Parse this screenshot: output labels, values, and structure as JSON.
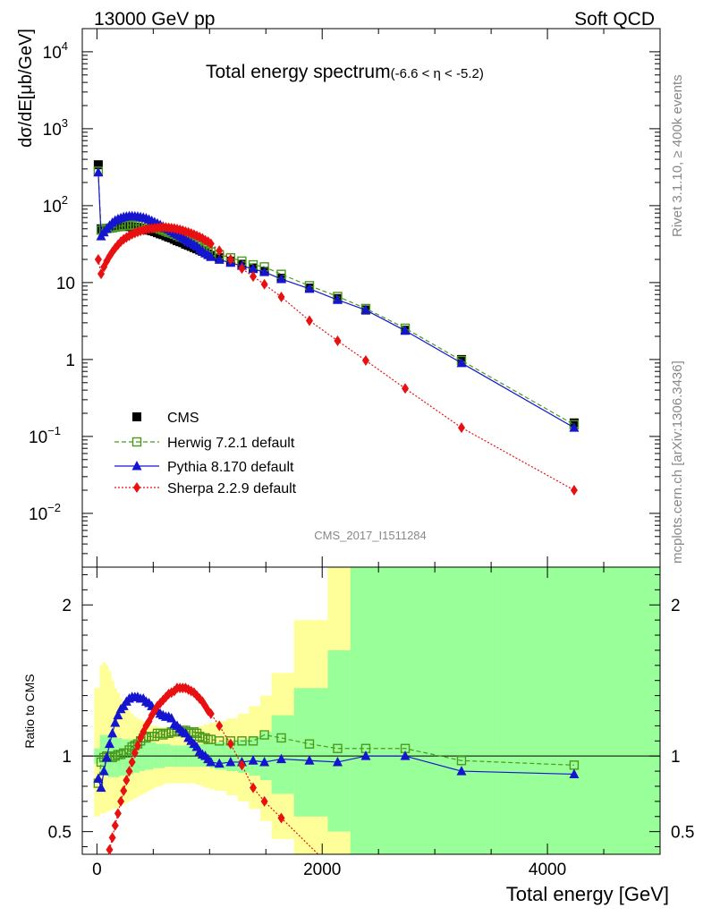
{
  "header": {
    "left": "13000 GeV pp",
    "right": "Soft QCD"
  },
  "side": {
    "rivet": "Rivet 3.1.10, ≥ 400k events",
    "mcplots": "mcplots.cern.ch [arXiv:1306.3436]"
  },
  "chart_data": {
    "type": "line",
    "title": "Total energy spectrum",
    "title_sub": "(-6.6 < η < -5.2)",
    "analysis": "CMS_2017_I1511284",
    "ylabel": "dσ/dE[μb/GeV]",
    "xlabel": "Total energy [GeV]",
    "ratio_ylabel": "Ratio to CMS",
    "xlim": [
      -130,
      5000
    ],
    "ylim_log": [
      0.002,
      20000
    ],
    "ratio_ylim": [
      0.35,
      2.25
    ],
    "x_ticks": [
      0,
      2000,
      4000
    ],
    "x_tick_labels": [
      "0",
      "2000",
      "4000"
    ],
    "y_ticks": [
      {
        "v": 10000,
        "b": "10",
        "e": "4"
      },
      {
        "v": 1000,
        "b": "10",
        "e": "3"
      },
      {
        "v": 100,
        "b": "10",
        "e": "2"
      },
      {
        "v": 10,
        "b": "10",
        "e": ""
      },
      {
        "v": 1,
        "b": "1",
        "e": ""
      },
      {
        "v": 0.1,
        "b": "10",
        "e": "−1"
      },
      {
        "v": 0.01,
        "b": "10",
        "e": "−2"
      }
    ],
    "ratio_ticks": [
      {
        "v": 0.5,
        "l": "0.5"
      },
      {
        "v": 1,
        "l": "1"
      },
      {
        "v": 2,
        "l": "2"
      }
    ],
    "legend": [
      "CMS",
      "Herwig 7.2.1 default",
      "Pythia 8.170 default",
      "Sherpa 2.2.9 default"
    ],
    "colors": {
      "cms": "#000000",
      "herwig": "#4a9a1e",
      "pythia": "#1515d0",
      "sherpa": "#e81010",
      "band_green": "#99ff99",
      "band_yellow": "#ffff99"
    },
    "series": [
      {
        "name": "CMS",
        "x": [
          12,
          37,
          62,
          87,
          112,
          137,
          162,
          187,
          212,
          237,
          262,
          287,
          312,
          337,
          362,
          387,
          412,
          437,
          462,
          487,
          512,
          537,
          562,
          587,
          612,
          637,
          662,
          687,
          712,
          737,
          762,
          787,
          812,
          837,
          862,
          887,
          912,
          937,
          962,
          987,
          1012,
          1087,
          1187,
          1287,
          1387,
          1487,
          1637,
          1887,
          2137,
          2387,
          2737,
          3237,
          4237
        ],
        "values": [
          340,
          50,
          50,
          50.5,
          51,
          52,
          52.5,
          53,
          53.5,
          54,
          54,
          53.5,
          53,
          52.5,
          52,
          51,
          50,
          49,
          48,
          47,
          46,
          44.5,
          43,
          42,
          40.5,
          39,
          38,
          36.5,
          35,
          34,
          33,
          31.5,
          30.5,
          29.5,
          28.5,
          27.5,
          26.5,
          25.5,
          24.5,
          23.5,
          22.5,
          21,
          19,
          17.3,
          15.5,
          14,
          11.4,
          8.5,
          6.2,
          4.4,
          2.4,
          1.0,
          0.15
        ]
      },
      {
        "name": "Herwig 7.2.1 default",
        "x": [
          12,
          37,
          62,
          87,
          112,
          137,
          162,
          187,
          212,
          237,
          262,
          287,
          312,
          337,
          362,
          387,
          412,
          437,
          462,
          487,
          512,
          537,
          562,
          587,
          612,
          637,
          662,
          687,
          712,
          737,
          762,
          787,
          812,
          837,
          862,
          887,
          912,
          937,
          962,
          987,
          1012,
          1087,
          1187,
          1287,
          1387,
          1487,
          1637,
          1887,
          2137,
          2387,
          2737,
          3237,
          4237
        ],
        "values": [
          280,
          48,
          49.5,
          50.5,
          51,
          51.5,
          52.5,
          53.5,
          54,
          55,
          55,
          55.5,
          56,
          56,
          56,
          56,
          56,
          55,
          54,
          53,
          52,
          51,
          49.5,
          48,
          46.5,
          45,
          44,
          42.5,
          41,
          39.5,
          38.5,
          37,
          35.5,
          34,
          33,
          31.5,
          30,
          28.5,
          27.5,
          26,
          25,
          23,
          21,
          19,
          17,
          16,
          12.8,
          9.1,
          6.6,
          4.6,
          2.55,
          0.97,
          0.142
        ]
      },
      {
        "name": "Pythia 8.170 default",
        "x": [
          12,
          37,
          62,
          87,
          112,
          137,
          162,
          187,
          212,
          237,
          262,
          287,
          312,
          337,
          362,
          387,
          412,
          437,
          462,
          487,
          512,
          537,
          562,
          587,
          612,
          637,
          662,
          687,
          712,
          737,
          762,
          787,
          812,
          837,
          862,
          887,
          912,
          937,
          962,
          987,
          1012,
          1087,
          1187,
          1287,
          1387,
          1487,
          1637,
          1887,
          2137,
          2387,
          2737,
          3237,
          4237
        ],
        "values": [
          270,
          40,
          45,
          50,
          55,
          60,
          64,
          67,
          69,
          71,
          72,
          73,
          73,
          72.5,
          72,
          71,
          70,
          68.5,
          66,
          63.5,
          61,
          58.5,
          56,
          53.5,
          51,
          49,
          46.5,
          44,
          42,
          40,
          38,
          36,
          34,
          32.5,
          31,
          29.5,
          27,
          25.5,
          24,
          22.8,
          21.5,
          19.8,
          18.1,
          16.5,
          15.0,
          13.7,
          11.1,
          8.3,
          5.95,
          4.4,
          2.37,
          0.9,
          0.13
        ]
      },
      {
        "name": "Sherpa 2.2.9 default",
        "x": [
          12,
          37,
          62,
          87,
          112,
          137,
          162,
          187,
          212,
          237,
          262,
          287,
          312,
          337,
          362,
          387,
          412,
          437,
          462,
          487,
          512,
          537,
          562,
          587,
          612,
          637,
          662,
          687,
          712,
          737,
          762,
          787,
          812,
          837,
          862,
          887,
          912,
          937,
          962,
          987,
          1012,
          1087,
          1187,
          1287,
          1387,
          1487,
          1637,
          1887,
          2137,
          2387,
          2737,
          3237,
          4237
        ],
        "values": [
          20,
          13,
          16,
          19,
          22,
          25,
          28,
          31,
          34,
          36.5,
          38.5,
          40.5,
          42.5,
          44,
          45.5,
          47,
          48,
          49,
          50,
          50.5,
          51,
          51.5,
          52,
          52,
          52,
          51.5,
          51,
          50.5,
          49.5,
          48.5,
          47.5,
          46,
          45,
          43.5,
          42,
          40.5,
          39,
          37.5,
          35.5,
          34,
          32,
          26,
          20,
          15.2,
          12.0,
          9.5,
          6.5,
          3.2,
          1.75,
          0.97,
          0.42,
          0.13,
          0.02
        ]
      }
    ],
    "ratio_series": [
      {
        "name": "Herwig 7.2.1 default",
        "x": [
          12,
          37,
          62,
          87,
          112,
          137,
          162,
          187,
          212,
          237,
          262,
          287,
          312,
          337,
          362,
          387,
          412,
          437,
          462,
          487,
          512,
          537,
          562,
          587,
          612,
          637,
          662,
          687,
          712,
          737,
          762,
          787,
          812,
          837,
          862,
          887,
          912,
          937,
          962,
          987,
          1012,
          1087,
          1187,
          1287,
          1387,
          1487,
          1637,
          1887,
          2137,
          2387,
          2737,
          3237,
          4237
        ],
        "values": [
          0.82,
          0.96,
          0.99,
          1.0,
          1.0,
          0.99,
          1.0,
          1.01,
          1.01,
          1.02,
          1.02,
          1.04,
          1.06,
          1.07,
          1.08,
          1.1,
          1.12,
          1.12,
          1.13,
          1.13,
          1.13,
          1.15,
          1.15,
          1.14,
          1.15,
          1.15,
          1.16,
          1.16,
          1.17,
          1.16,
          1.17,
          1.17,
          1.16,
          1.15,
          1.16,
          1.15,
          1.13,
          1.12,
          1.12,
          1.11,
          1.11,
          1.1,
          1.1,
          1.1,
          1.1,
          1.14,
          1.12,
          1.08,
          1.05,
          1.05,
          1.05,
          0.97,
          0.94
        ]
      },
      {
        "name": "Pythia 8.170 default",
        "x": [
          12,
          37,
          62,
          87,
          112,
          137,
          162,
          187,
          212,
          237,
          262,
          287,
          312,
          337,
          362,
          387,
          412,
          437,
          462,
          487,
          512,
          537,
          562,
          587,
          612,
          637,
          662,
          687,
          712,
          737,
          762,
          787,
          812,
          837,
          862,
          887,
          912,
          937,
          962,
          987,
          1012,
          1087,
          1187,
          1287,
          1387,
          1487,
          1637,
          1887,
          2137,
          2387,
          2737,
          3237,
          4237
        ],
        "values": [
          0.85,
          0.79,
          0.9,
          0.99,
          1.08,
          1.15,
          1.22,
          1.27,
          1.31,
          1.33,
          1.36,
          1.38,
          1.39,
          1.39,
          1.39,
          1.38,
          1.38,
          1.36,
          1.35,
          1.33,
          1.3,
          1.3,
          1.28,
          1.27,
          1.26,
          1.26,
          1.25,
          1.21,
          1.2,
          1.18,
          1.16,
          1.15,
          1.12,
          1.1,
          1.08,
          1.06,
          1.03,
          1.01,
          1.0,
          0.98,
          0.96,
          0.95,
          0.96,
          0.96,
          0.97,
          0.96,
          0.98,
          0.97,
          0.96,
          1.0,
          1.0,
          0.9,
          0.88
        ]
      },
      {
        "name": "Sherpa 2.2.9 default",
        "x": [
          112,
          137,
          162,
          187,
          212,
          237,
          262,
          287,
          312,
          337,
          362,
          387,
          412,
          437,
          462,
          487,
          512,
          537,
          562,
          587,
          612,
          637,
          662,
          687,
          712,
          737,
          762,
          787,
          812,
          837,
          862,
          887,
          912,
          937,
          962,
          987,
          1012,
          1087,
          1187,
          1287,
          1387,
          1487,
          1637
        ],
        "values": [
          0.38,
          0.46,
          0.54,
          0.62,
          0.7,
          0.77,
          0.84,
          0.9,
          0.96,
          1.02,
          1.07,
          1.12,
          1.16,
          1.2,
          1.23,
          1.27,
          1.3,
          1.33,
          1.35,
          1.37,
          1.39,
          1.41,
          1.42,
          1.43,
          1.45,
          1.45,
          1.45,
          1.45,
          1.44,
          1.43,
          1.42,
          1.4,
          1.38,
          1.36,
          1.33,
          1.3,
          1.28,
          1.2,
          1.08,
          0.94,
          0.79,
          0.7,
          0.59
        ]
      }
    ],
    "bands": {
      "x_edges": [
        -25,
        25,
        50,
        75,
        100,
        125,
        150,
        175,
        200,
        225,
        250,
        275,
        300,
        325,
        350,
        375,
        400,
        425,
        450,
        475,
        500,
        525,
        550,
        575,
        600,
        625,
        650,
        675,
        700,
        725,
        750,
        775,
        800,
        825,
        850,
        875,
        900,
        925,
        950,
        975,
        1000,
        1050,
        1150,
        1250,
        1350,
        1450,
        1550,
        1750,
        2050,
        2250,
        2550,
        3050,
        3550,
        5000
      ],
      "green_lo": [
        0.95,
        0.88,
        0.87,
        0.87,
        0.86,
        0.86,
        0.86,
        0.86,
        0.87,
        0.87,
        0.87,
        0.88,
        0.88,
        0.89,
        0.89,
        0.9,
        0.9,
        0.91,
        0.91,
        0.91,
        0.92,
        0.92,
        0.92,
        0.92,
        0.93,
        0.93,
        0.93,
        0.93,
        0.93,
        0.93,
        0.93,
        0.93,
        0.93,
        0.93,
        0.93,
        0.93,
        0.93,
        0.93,
        0.93,
        0.93,
        0.92,
        0.91,
        0.9,
        0.89,
        0.87,
        0.84,
        0.75,
        0.6,
        0.5,
        0.2,
        0.2,
        0.2,
        0.2
      ],
      "green_hi": [
        1.05,
        1.14,
        1.14,
        1.14,
        1.13,
        1.13,
        1.12,
        1.12,
        1.12,
        1.11,
        1.11,
        1.11,
        1.11,
        1.1,
        1.1,
        1.1,
        1.1,
        1.09,
        1.09,
        1.09,
        1.09,
        1.08,
        1.08,
        1.08,
        1.08,
        1.08,
        1.07,
        1.07,
        1.07,
        1.07,
        1.07,
        1.07,
        1.07,
        1.07,
        1.07,
        1.07,
        1.08,
        1.08,
        1.08,
        1.08,
        1.08,
        1.09,
        1.1,
        1.11,
        1.13,
        1.16,
        1.27,
        1.45,
        1.7,
        2.5,
        2.5,
        2.5,
        2.5
      ],
      "yellow_lo": [
        0.6,
        0.62,
        0.62,
        0.63,
        0.64,
        0.65,
        0.65,
        0.66,
        0.67,
        0.68,
        0.69,
        0.7,
        0.71,
        0.72,
        0.73,
        0.74,
        0.75,
        0.76,
        0.77,
        0.78,
        0.79,
        0.8,
        0.8,
        0.81,
        0.82,
        0.82,
        0.82,
        0.82,
        0.82,
        0.82,
        0.82,
        0.82,
        0.82,
        0.82,
        0.82,
        0.81,
        0.81,
        0.8,
        0.79,
        0.79,
        0.78,
        0.77,
        0.74,
        0.7,
        0.65,
        0.57,
        0.45,
        0.35,
        0.3,
        0.2,
        0.2,
        0.2,
        0.2
      ],
      "yellow_hi": [
        1.45,
        1.6,
        1.62,
        1.6,
        1.56,
        1.5,
        1.45,
        1.42,
        1.38,
        1.35,
        1.32,
        1.3,
        1.28,
        1.26,
        1.25,
        1.24,
        1.23,
        1.22,
        1.21,
        1.2,
        1.2,
        1.2,
        1.19,
        1.19,
        1.19,
        1.19,
        1.18,
        1.18,
        1.18,
        1.18,
        1.18,
        1.18,
        1.19,
        1.19,
        1.19,
        1.19,
        1.2,
        1.2,
        1.21,
        1.21,
        1.22,
        1.23,
        1.25,
        1.28,
        1.33,
        1.4,
        1.55,
        1.9,
        2.3,
        2.5,
        2.5,
        2.5,
        2.5
      ]
    }
  }
}
